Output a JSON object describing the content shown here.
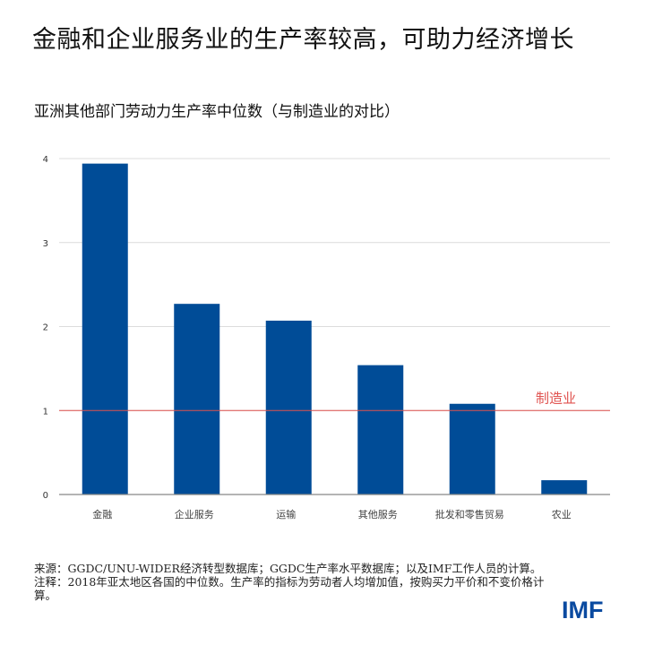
{
  "title": "金融和企业服务业的生产率较高，可助力经济增长",
  "subtitle": "亚洲其他部门劳动力生产率中位数（与制造业的对比）",
  "chart_data": {
    "type": "bar",
    "categories": [
      "金融",
      "企业服务",
      "运输",
      "其他服务",
      "批发和零售贸易",
      "农业"
    ],
    "values": [
      3.94,
      2.27,
      2.07,
      1.54,
      1.08,
      0.17
    ],
    "ylim": [
      0,
      4
    ],
    "yticks": [
      "0",
      "1",
      "2",
      "3",
      "4"
    ],
    "grid": true,
    "bar_color": "#004c97",
    "reference_line": {
      "value": 1,
      "label": "制造业",
      "color": "#e0524f"
    }
  },
  "notes": {
    "source": "来源：GGDC/UNU-WIDER经济转型数据库；GGDC生产率水平数据库；以及IMF工作人员的计算。",
    "note": "注释：2018年亚太地区各国的中位数。生产率的指标为劳动者人均增加值，按购买力平价和不变价格计算。"
  },
  "logo": "IMF"
}
